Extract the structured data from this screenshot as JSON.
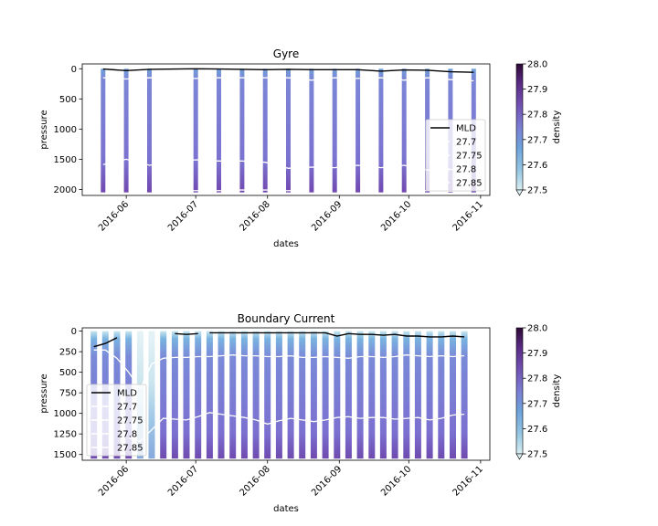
{
  "chart_data": [
    {
      "type": "area",
      "title": "Gyre",
      "xlabel": "dates",
      "ylabel": "pressure",
      "ylim": [
        2100,
        -80
      ],
      "y_ticks": [
        0,
        500,
        1000,
        1500,
        2000
      ],
      "x_ticks": [
        "2016-06",
        "2016-07",
        "2016-08",
        "2016-09",
        "2016-10",
        "2016-11"
      ],
      "x_range": [
        "2016-05-13",
        "2016-11-05"
      ],
      "profile_dates": [
        "2016-05-22",
        "2016-06-01",
        "2016-06-11",
        "2016-07-01",
        "2016-07-11",
        "2016-07-21",
        "2016-07-31",
        "2016-08-10",
        "2016-08-20",
        "2016-08-30",
        "2016-09-09",
        "2016-09-19",
        "2016-09-29",
        "2016-10-09",
        "2016-10-19",
        "2016-10-29"
      ],
      "bottom_pressure": 2050,
      "colorbar": {
        "label": "density",
        "ticks": [
          "27.5",
          "27.6",
          "27.7",
          "27.8",
          "27.9",
          "28.0"
        ],
        "colors": [
          "#d9eef1",
          "#98c8e3",
          "#6ea4db",
          "#7b7ed3",
          "#7050b2",
          "#5a2a83",
          "#2d0a36"
        ]
      },
      "series": [
        {
          "name": "MLD",
          "color": "#000000",
          "x": [
            "2016-05-22",
            "2016-06-01",
            "2016-06-11",
            "2016-07-01",
            "2016-07-11",
            "2016-07-21",
            "2016-07-31",
            "2016-08-10",
            "2016-08-20",
            "2016-08-30",
            "2016-09-09",
            "2016-09-19",
            "2016-09-29",
            "2016-10-09",
            "2016-10-19",
            "2016-10-29"
          ],
          "y": [
            5,
            30,
            10,
            0,
            5,
            10,
            15,
            10,
            15,
            15,
            15,
            40,
            20,
            25,
            50,
            60
          ]
        },
        {
          "name": "27.7",
          "color": "#ffffff",
          "x": [
            "2016-05-22",
            "2016-06-01",
            "2016-06-11",
            "2016-07-01",
            "2016-07-11",
            "2016-07-21",
            "2016-07-31",
            "2016-08-10",
            "2016-08-20",
            "2016-08-30",
            "2016-09-09",
            "2016-09-19",
            "2016-09-29",
            "2016-10-09",
            "2016-10-19",
            "2016-10-29"
          ],
          "y": [
            150,
            170,
            150,
            160,
            150,
            150,
            150,
            150,
            190,
            150,
            160,
            150,
            190,
            150,
            180,
            200
          ]
        },
        {
          "name": "27.75",
          "color": "#ffffff",
          "x": [
            "2016-05-22",
            "2016-06-01",
            "2016-06-11",
            "2016-07-01",
            "2016-07-11",
            "2016-07-21",
            "2016-07-31",
            "2016-08-10",
            "2016-08-20",
            "2016-08-30",
            "2016-09-09",
            "2016-09-19",
            "2016-09-29",
            "2016-10-09",
            "2016-10-19",
            "2016-10-29"
          ],
          "y": [
            1590,
            1500,
            1600,
            1510,
            1530,
            1530,
            1550,
            1650,
            1630,
            1640,
            1600,
            1640,
            1600,
            1680,
            1670,
            1640
          ]
        },
        {
          "name": "27.8",
          "color": "#ffffff",
          "x": [
            "2016-07-01",
            "2016-07-11",
            "2016-07-21",
            "2016-07-31",
            "2016-08-10",
            "2016-10-09",
            "2016-10-19"
          ],
          "y": [
            2020,
            2020,
            2010,
            2010,
            2020,
            2020,
            2030
          ]
        },
        {
          "name": "27.85",
          "color": "#ffffff",
          "x": [],
          "y": []
        }
      ],
      "legend": {
        "position": "lower right",
        "entries": [
          "MLD",
          "27.7",
          "27.75",
          "27.8",
          "27.85"
        ]
      }
    },
    {
      "type": "area",
      "title": "Boundary Current",
      "xlabel": "dates",
      "ylabel": "pressure",
      "ylim": [
        1570,
        -40
      ],
      "y_ticks": [
        0,
        250,
        500,
        750,
        1000,
        1250,
        1500
      ],
      "x_ticks": [
        "2016-06",
        "2016-07",
        "2016-08",
        "2016-09",
        "2016-10",
        "2016-11"
      ],
      "x_range": [
        "2016-05-13",
        "2016-11-05"
      ],
      "profile_dates": [
        "2016-05-18",
        "2016-05-23",
        "2016-05-28",
        "2016-06-02",
        "2016-06-07",
        "2016-06-12",
        "2016-06-17",
        "2016-06-22",
        "2016-06-27",
        "2016-07-02",
        "2016-07-07",
        "2016-07-12",
        "2016-07-17",
        "2016-07-22",
        "2016-07-27",
        "2016-08-01",
        "2016-08-06",
        "2016-08-11",
        "2016-08-16",
        "2016-08-21",
        "2016-08-26",
        "2016-08-31",
        "2016-09-05",
        "2016-09-10",
        "2016-09-15",
        "2016-09-20",
        "2016-09-25",
        "2016-09-30",
        "2016-10-05",
        "2016-10-10",
        "2016-10-15",
        "2016-10-20",
        "2016-10-25"
      ],
      "bottom_pressure": 1550,
      "colorbar": {
        "label": "density",
        "ticks": [
          "27.5",
          "27.6",
          "27.7",
          "27.8",
          "27.9",
          "28.0"
        ],
        "colors": [
          "#d9eef1",
          "#98c8e3",
          "#6ea4db",
          "#7b7ed3",
          "#7050b2",
          "#5a2a83",
          "#2d0a36"
        ]
      },
      "series": [
        {
          "name": "MLD",
          "color": "#000000",
          "segments": [
            {
              "x": [
                "2016-05-18",
                "2016-05-23",
                "2016-05-28"
              ],
              "y": [
                190,
                150,
                80
              ]
            },
            {
              "x": [
                "2016-06-22",
                "2016-06-27",
                "2016-07-02"
              ],
              "y": [
                30,
                40,
                30
              ]
            },
            {
              "x": [
                "2016-07-07",
                "2016-07-12",
                "2016-07-17",
                "2016-07-22",
                "2016-07-27",
                "2016-08-01",
                "2016-08-06",
                "2016-08-11",
                "2016-08-16",
                "2016-08-21",
                "2016-08-26",
                "2016-08-31",
                "2016-09-05",
                "2016-09-10",
                "2016-09-15",
                "2016-09-20",
                "2016-09-25",
                "2016-09-30",
                "2016-10-05",
                "2016-10-10",
                "2016-10-15",
                "2016-10-20",
                "2016-10-25"
              ],
              "y": [
                20,
                20,
                20,
                20,
                20,
                20,
                20,
                20,
                20,
                20,
                20,
                60,
                30,
                40,
                40,
                50,
                40,
                60,
                60,
                70,
                70,
                60,
                70
              ]
            }
          ]
        },
        {
          "name": "27.7",
          "color": "#ffffff",
          "x": [
            "2016-05-18",
            "2016-05-23",
            "2016-05-28",
            "2016-06-02",
            "2016-06-07",
            "2016-06-12",
            "2016-06-17",
            "2016-06-22",
            "2016-06-27",
            "2016-07-02",
            "2016-07-07",
            "2016-07-12",
            "2016-07-17",
            "2016-07-22",
            "2016-07-27",
            "2016-08-01",
            "2016-08-06",
            "2016-08-11",
            "2016-08-16",
            "2016-08-21",
            "2016-08-26",
            "2016-08-31",
            "2016-09-05",
            "2016-09-10",
            "2016-09-15",
            "2016-09-20",
            "2016-09-25",
            "2016-09-30",
            "2016-10-05",
            "2016-10-10",
            "2016-10-15",
            "2016-10-20",
            "2016-10-25"
          ],
          "y": [
            230,
            230,
            330,
            500,
            700,
            400,
            330,
            320,
            320,
            310,
            310,
            300,
            290,
            300,
            300,
            310,
            310,
            300,
            320,
            320,
            310,
            320,
            330,
            310,
            310,
            320,
            310,
            290,
            300,
            310,
            300,
            310,
            300
          ]
        },
        {
          "name": "27.75",
          "color": "#ffffff",
          "x": [
            "2016-06-02",
            "2016-06-07",
            "2016-06-12",
            "2016-06-17",
            "2016-06-22",
            "2016-06-27",
            "2016-07-02",
            "2016-07-07",
            "2016-07-12",
            "2016-07-17",
            "2016-07-22",
            "2016-07-27",
            "2016-08-01",
            "2016-08-06",
            "2016-08-11",
            "2016-08-16",
            "2016-08-21",
            "2016-08-26",
            "2016-08-31",
            "2016-09-05",
            "2016-09-10",
            "2016-09-15",
            "2016-09-20",
            "2016-09-25",
            "2016-09-30",
            "2016-10-05",
            "2016-10-10",
            "2016-10-15",
            "2016-10-20",
            "2016-10-25"
          ],
          "y": [
            1300,
            1340,
            1200,
            1060,
            1070,
            1080,
            1040,
            990,
            1010,
            1030,
            1050,
            1080,
            1130,
            1090,
            1060,
            1080,
            1100,
            1080,
            1050,
            1040,
            1060,
            1050,
            1050,
            1070,
            1060,
            1050,
            1080,
            1060,
            1020,
            1010
          ]
        },
        {
          "name": "27.8",
          "color": "#ffffff",
          "x": [],
          "y": []
        },
        {
          "name": "27.85",
          "color": "#ffffff",
          "x": [],
          "y": []
        }
      ],
      "legend": {
        "position": "lower left",
        "entries": [
          "MLD",
          "27.7",
          "27.75",
          "27.8",
          "27.85"
        ]
      }
    }
  ]
}
